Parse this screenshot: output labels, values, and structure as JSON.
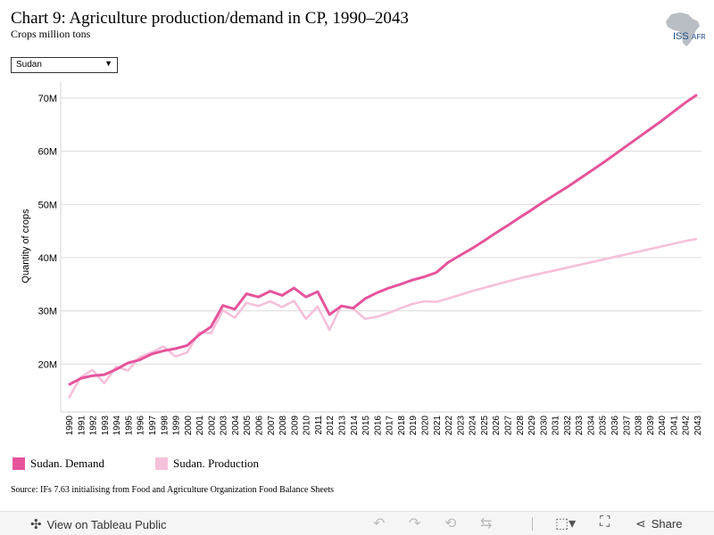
{
  "header": {
    "title": "Chart 9: Agriculture production/demand in CP, 1990–2043",
    "subtitle": "Crops million tons"
  },
  "logo": {
    "text_iss": "ISS",
    "text_afr": "AFR",
    "icon": "africa-map-icon"
  },
  "filter": {
    "selected": "Sudan"
  },
  "legend": [
    {
      "label": "Sudan. Demand",
      "color": "#e5549b"
    },
    {
      "label": "Sudan. Production",
      "color": "#f6c0da"
    }
  ],
  "source": "Source: IFs 7.63 initialising from Food and Agriculture Organization Food Balance Sheets",
  "toolbar": {
    "view_label": "View on Tableau Public",
    "share_label": "Share",
    "icons": [
      "tableau-icon",
      "undo-icon",
      "redo-icon",
      "revert-icon",
      "refresh-icon",
      "download-icon",
      "fullscreen-icon",
      "share-icon"
    ]
  },
  "chart_data": {
    "type": "line",
    "ylabel": "Quantity of crops",
    "xlabel": "",
    "ylim": [
      11,
      73
    ],
    "yticks": [
      20,
      30,
      40,
      50,
      60,
      70
    ],
    "ytick_labels": [
      "20M",
      "30M",
      "40M",
      "50M",
      "60M",
      "70M"
    ],
    "grid": true,
    "legend_position": "bottom",
    "x": [
      1990,
      1991,
      1992,
      1993,
      1994,
      1995,
      1996,
      1997,
      1998,
      1999,
      2000,
      2001,
      2002,
      2003,
      2004,
      2005,
      2006,
      2007,
      2008,
      2009,
      2010,
      2011,
      2012,
      2013,
      2014,
      2015,
      2016,
      2017,
      2018,
      2019,
      2020,
      2021,
      2022,
      2023,
      2024,
      2025,
      2026,
      2027,
      2028,
      2029,
      2030,
      2031,
      2032,
      2033,
      2034,
      2035,
      2036,
      2037,
      2038,
      2039,
      2040,
      2041,
      2042,
      2043
    ],
    "series": [
      {
        "name": "Sudan. Demand",
        "color": "#e5549b",
        "values": [
          16.1,
          17.3,
          17.8,
          18.0,
          19.0,
          20.2,
          20.8,
          21.9,
          22.5,
          22.9,
          23.5,
          25.5,
          27.0,
          31.0,
          30.3,
          33.2,
          32.6,
          33.7,
          32.9,
          34.3,
          32.6,
          33.6,
          29.3,
          30.9,
          30.5,
          32.3,
          33.4,
          34.3,
          35.0,
          35.8,
          36.4,
          37.2,
          39.1,
          40.4,
          41.7,
          43.1,
          44.6,
          46.0,
          47.5,
          48.9,
          50.4,
          51.8,
          53.2,
          54.7,
          56.2,
          57.7,
          59.3,
          60.9,
          62.5,
          64.1,
          65.7,
          67.4,
          69.1,
          70.6
        ],
        "values_note": ""
      },
      {
        "name": "Sudan. Production",
        "color": "#f6c0da",
        "values": [
          13.6,
          17.5,
          18.9,
          16.4,
          19.5,
          18.8,
          21.3,
          22.2,
          23.3,
          21.4,
          22.2,
          26.0,
          25.8,
          30.1,
          28.7,
          31.5,
          30.9,
          31.8,
          30.7,
          31.9,
          28.5,
          30.8,
          26.4,
          31.0,
          30.4,
          28.5,
          28.9,
          29.6,
          30.5,
          31.3,
          31.8,
          31.7,
          32.3,
          33.0,
          33.7,
          34.3,
          34.9,
          35.5,
          36.1,
          36.6,
          37.1,
          37.6,
          38.1,
          38.6,
          39.1,
          39.6,
          40.1,
          40.6,
          41.1,
          41.6,
          42.1,
          42.6,
          43.1,
          43.5
        ]
      }
    ]
  }
}
